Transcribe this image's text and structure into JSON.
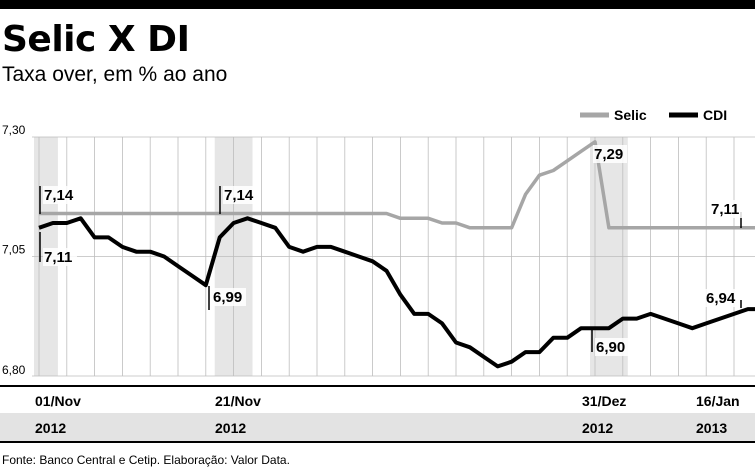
{
  "header": {
    "title": "Selic X DI",
    "subtitle": "Taxa over, em % ao ano"
  },
  "footer": {
    "source": "Fonte: Banco Central e Cetip. Elaboração: Valor Data."
  },
  "colors": {
    "selic": "#a6a6a6",
    "cdi": "#000000",
    "shade": "#e6e6e6",
    "grid": "#bdbdbd",
    "date_band_top": "#ffffff",
    "date_band_bottom": "#e3e3e3"
  },
  "chart_data": {
    "type": "line",
    "title": "Selic X DI",
    "subtitle": "Taxa over, em % ao ano",
    "xlabel": "",
    "ylabel": "",
    "ylim": [
      6.8,
      7.3
    ],
    "yticks": [
      "7,30",
      "7,05",
      "6,80"
    ],
    "grid": true,
    "legend_position": "top-right",
    "legend": [
      "Selic",
      "CDI"
    ],
    "x_date_labels": [
      {
        "index": 0,
        "day": "01/Nov",
        "year": "2012"
      },
      {
        "index": 14,
        "day": "21/Nov",
        "year": "2012"
      },
      {
        "index": 41,
        "day": "31/Dez",
        "year": "2012"
      },
      {
        "index": 53,
        "day": "16/Jan",
        "year": "2013"
      }
    ],
    "shaded_periods": [
      {
        "start": 0,
        "end": 1
      },
      {
        "start": 13,
        "end": 15
      },
      {
        "start": 40,
        "end": 42
      },
      {
        "start": 52,
        "end": 53
      }
    ],
    "series": [
      {
        "name": "Selic",
        "values": [
          7.14,
          7.14,
          7.14,
          7.14,
          7.14,
          7.14,
          7.14,
          7.14,
          7.14,
          7.14,
          7.14,
          7.14,
          7.14,
          7.14,
          7.14,
          7.14,
          7.14,
          7.14,
          7.14,
          7.14,
          7.14,
          7.14,
          7.14,
          7.14,
          7.14,
          7.14,
          7.13,
          7.13,
          7.13,
          7.12,
          7.12,
          7.11,
          7.11,
          7.11,
          7.11,
          7.18,
          7.22,
          7.23,
          7.25,
          7.27,
          7.29,
          7.11,
          7.11,
          7.11,
          7.11,
          7.11,
          7.11,
          7.11,
          7.11,
          7.11,
          7.11,
          7.11,
          7.11,
          7.11
        ]
      },
      {
        "name": "CDI",
        "values": [
          7.11,
          7.12,
          7.12,
          7.13,
          7.09,
          7.09,
          7.07,
          7.06,
          7.06,
          7.05,
          7.03,
          7.01,
          6.99,
          7.09,
          7.12,
          7.13,
          7.12,
          7.11,
          7.07,
          7.06,
          7.07,
          7.07,
          7.06,
          7.05,
          7.04,
          7.02,
          6.97,
          6.93,
          6.93,
          6.91,
          6.87,
          6.86,
          6.84,
          6.82,
          6.83,
          6.85,
          6.85,
          6.88,
          6.88,
          6.9,
          6.9,
          6.9,
          6.92,
          6.92,
          6.93,
          6.92,
          6.91,
          6.9,
          6.91,
          6.92,
          6.93,
          6.94,
          6.94,
          6.94
        ]
      }
    ],
    "annotations": [
      {
        "series": "Selic",
        "index": 0,
        "text": "7,14"
      },
      {
        "series": "CDI",
        "index": 0,
        "text": "7,11"
      },
      {
        "series": "CDI",
        "index": 12,
        "text": "6,99"
      },
      {
        "series": "Selic",
        "index": 14,
        "text": "7,14"
      },
      {
        "series": "Selic",
        "index": 40,
        "text": "7,29"
      },
      {
        "series": "CDI",
        "index": 41,
        "text": "6,90"
      },
      {
        "series": "Selic",
        "index": 53,
        "text": "7,11"
      },
      {
        "series": "CDI",
        "index": 52,
        "text": "6,94"
      }
    ]
  }
}
